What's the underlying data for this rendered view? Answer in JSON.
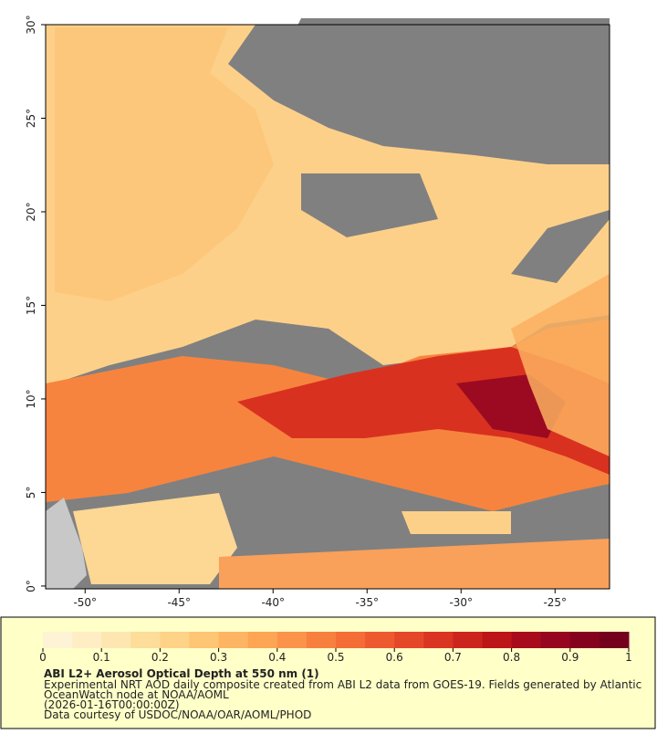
{
  "map": {
    "lon_axis": {
      "lim": [
        -52.1,
        -22.1
      ],
      "ticks": [
        {
          "value": -50,
          "label": "-50°"
        },
        {
          "value": -45,
          "label": "-45°"
        },
        {
          "value": -40,
          "label": "-40°"
        },
        {
          "value": -35,
          "label": "-35°"
        },
        {
          "value": -30,
          "label": "-30°"
        },
        {
          "value": -25,
          "label": "-25°"
        }
      ]
    },
    "lat_axis": {
      "lim": [
        -0.15,
        30
      ],
      "ticks": [
        {
          "value": 0,
          "label": "0°"
        },
        {
          "value": 5,
          "label": "5°"
        },
        {
          "value": 10,
          "label": "10°"
        },
        {
          "value": 15,
          "label": "15°"
        },
        {
          "value": 20,
          "label": "20°"
        },
        {
          "value": 25,
          "label": "25°"
        },
        {
          "value": 30,
          "label": "30°"
        }
      ]
    }
  },
  "colorbar": {
    "lim": [
      0,
      1
    ],
    "ticks": [
      0,
      0.1,
      0.2,
      0.3,
      0.4,
      0.5,
      0.6,
      0.7,
      0.8,
      0.9,
      1
    ],
    "colors": [
      "#fff3d6",
      "#ffedc4",
      "#fee6b0",
      "#fedc9a",
      "#fed287",
      "#fdc574",
      "#fdb563",
      "#fca555",
      "#fb934a",
      "#f8803f",
      "#f46d37",
      "#ee5a2f",
      "#e54828",
      "#da3522",
      "#cc251d",
      "#bc1619",
      "#a80c1c",
      "#960620",
      "#85021f",
      "#74001e"
    ]
  },
  "footer": {
    "title": "ABI L2+ Aerosol Optical Depth at 550 nm (1)",
    "lines": [
      "Experimental NRT AOD daily composite created from ABI L2 data from GOES-19. Fields generated by Atlantic",
      "OceanWatch node at NOAA/AOML",
      "(2026-01-16T00:00:00Z)",
      "Data courtesy of USDOC/NOAA/OAR/AOML/PHOD"
    ]
  }
}
